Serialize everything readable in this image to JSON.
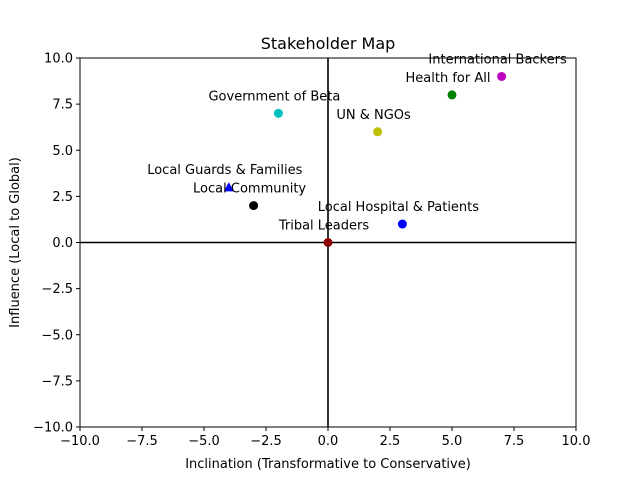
{
  "chart_data": {
    "type": "scatter",
    "title": "Stakeholder Map",
    "xlabel": "Inclination (Transformative to Conservative)",
    "ylabel": "Influence (Local to Global)",
    "xlim": [
      -10,
      10
    ],
    "ylim": [
      -10,
      10
    ],
    "xticks": [
      -10,
      -7.5,
      -5,
      -2.5,
      0,
      2.5,
      5,
      7.5,
      10
    ],
    "yticks": [
      -10,
      -7.5,
      -5,
      -2.5,
      0,
      2.5,
      5,
      7.5,
      10
    ],
    "xtick_labels": [
      "−10.0",
      "−7.5",
      "−5.0",
      "−2.5",
      "0.0",
      "2.5",
      "5.0",
      "7.5",
      "10.0"
    ],
    "ytick_labels": [
      "−10.0",
      "−7.5",
      "−5.0",
      "−2.5",
      "0.0",
      "2.5",
      "5.0",
      "7.5",
      "10.0"
    ],
    "grid": false,
    "reference_lines": {
      "x": 0,
      "y": 0
    },
    "points": [
      {
        "label": "International Backers",
        "x": 7,
        "y": 9,
        "color": "#bf00bf",
        "marker": "circle"
      },
      {
        "label": "Health for All",
        "x": 5,
        "y": 8,
        "color": "#008000",
        "marker": "circle"
      },
      {
        "label": "Government of Beta",
        "x": -2,
        "y": 7,
        "color": "#00bfbf",
        "marker": "circle"
      },
      {
        "label": "UN & NGOs",
        "x": 2,
        "y": 6,
        "color": "#bfbf00",
        "marker": "circle"
      },
      {
        "label": "Local Guards & Families",
        "x": -4,
        "y": 3,
        "color": "#0000ff",
        "marker": "triangle"
      },
      {
        "label": "Local Community",
        "x": -3,
        "y": 2,
        "color": "#000000",
        "marker": "circle"
      },
      {
        "label": "Local Hospital & Patients",
        "x": 3,
        "y": 1,
        "color": "#0000ff",
        "marker": "circle"
      },
      {
        "label": "Tribal Leaders",
        "x": 0,
        "y": 0,
        "color": "#8b0000",
        "marker": "circle"
      }
    ]
  }
}
